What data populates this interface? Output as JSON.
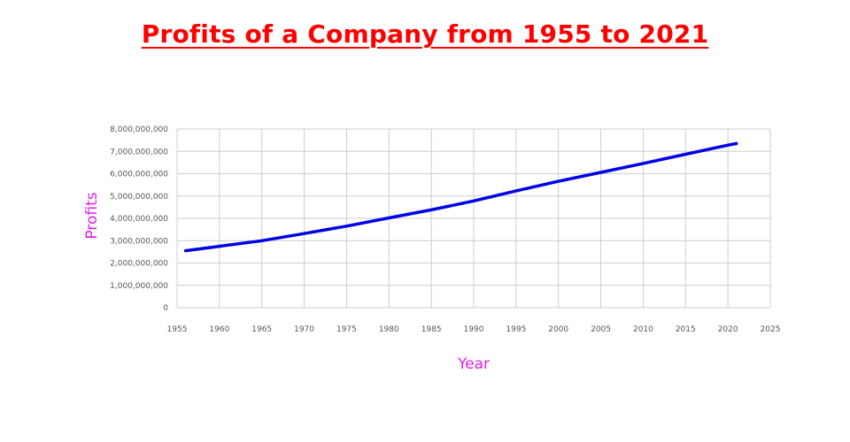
{
  "colors": {
    "title": "#ff0000",
    "series": "#0000e6",
    "axis_title": "#e020e8",
    "grid": "#cccccc",
    "tick_text": "#555555"
  },
  "chart_data": {
    "type": "line",
    "title": "Profits of a Company from 1955 to 2021",
    "xlabel": "Year",
    "ylabel": "Profits",
    "xlim": [
      1955,
      2025
    ],
    "ylim": [
      0,
      8000000000
    ],
    "x_ticks": [
      1955,
      1960,
      1965,
      1970,
      1975,
      1980,
      1985,
      1990,
      1995,
      2000,
      2005,
      2010,
      2015,
      2020,
      2025
    ],
    "y_ticks": [
      0,
      1000000000,
      2000000000,
      3000000000,
      4000000000,
      5000000000,
      6000000000,
      7000000000,
      8000000000
    ],
    "x_tick_labels": [
      "1955",
      "1960",
      "1965",
      "1970",
      "1975",
      "1980",
      "1985",
      "1990",
      "1995",
      "2000",
      "2005",
      "2010",
      "2015",
      "2020",
      "2025"
    ],
    "y_tick_labels": [
      "0",
      "1,000,000,000",
      "2,000,000,000",
      "3,000,000,000",
      "4,000,000,000",
      "5,000,000,000",
      "6,000,000,000",
      "7,000,000,000",
      "8,000,000,000"
    ],
    "grid": true,
    "legend": "none",
    "series": [
      {
        "x": [
          1956,
          1960,
          1965,
          1970,
          1975,
          1980,
          1985,
          1990,
          1995,
          2000,
          2005,
          2010,
          2015,
          2020,
          2021
        ],
        "values": [
          2550000000,
          2750000000,
          3000000000,
          3320000000,
          3650000000,
          4020000000,
          4380000000,
          4780000000,
          5230000000,
          5660000000,
          6060000000,
          6460000000,
          6870000000,
          7280000000,
          7350000000
        ]
      }
    ]
  }
}
